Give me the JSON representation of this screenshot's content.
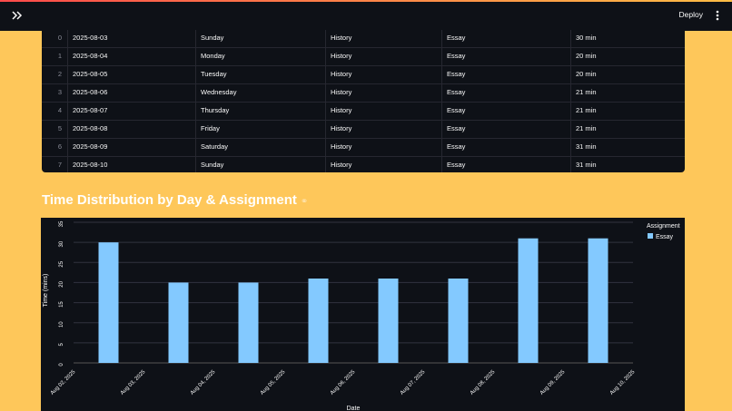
{
  "header": {
    "deploy_label": "Deploy"
  },
  "table": {
    "rows": [
      {
        "idx": "0",
        "date": "2025-08-03",
        "day": "Sunday",
        "subject": "History",
        "assignment": "Essay",
        "time": "30 min"
      },
      {
        "idx": "1",
        "date": "2025-08-04",
        "day": "Monday",
        "subject": "History",
        "assignment": "Essay",
        "time": "20 min"
      },
      {
        "idx": "2",
        "date": "2025-08-05",
        "day": "Tuesday",
        "subject": "History",
        "assignment": "Essay",
        "time": "20 min"
      },
      {
        "idx": "3",
        "date": "2025-08-06",
        "day": "Wednesday",
        "subject": "History",
        "assignment": "Essay",
        "time": "21 min"
      },
      {
        "idx": "4",
        "date": "2025-08-07",
        "day": "Thursday",
        "subject": "History",
        "assignment": "Essay",
        "time": "21 min"
      },
      {
        "idx": "5",
        "date": "2025-08-08",
        "day": "Friday",
        "subject": "History",
        "assignment": "Essay",
        "time": "21 min"
      },
      {
        "idx": "6",
        "date": "2025-08-09",
        "day": "Saturday",
        "subject": "History",
        "assignment": "Essay",
        "time": "31 min"
      },
      {
        "idx": "7",
        "date": "2025-08-10",
        "day": "Sunday",
        "subject": "History",
        "assignment": "Essay",
        "time": "31 min"
      }
    ]
  },
  "section": {
    "title": "Time Distribution by Day & Assignment",
    "link_icon": "link-icon"
  },
  "chart_data": {
    "type": "bar",
    "xlabel": "Date",
    "ylabel": "Time (mins)",
    "ylim": [
      0,
      35
    ],
    "yticks": [
      0,
      5,
      10,
      15,
      20,
      25,
      30,
      35
    ],
    "xticks": [
      "Aug 02, 2025",
      "Aug 03, 2025",
      "Aug 04, 2025",
      "Aug 05, 2025",
      "Aug 06, 2025",
      "Aug 07, 2025",
      "Aug 08, 2025",
      "Aug 09, 2025",
      "Aug 10, 2025"
    ],
    "x": [
      "2025-08-03",
      "2025-08-04",
      "2025-08-05",
      "2025-08-06",
      "2025-08-07",
      "2025-08-08",
      "2025-08-09",
      "2025-08-10"
    ],
    "series": [
      {
        "name": "Essay",
        "values": [
          30,
          20,
          20,
          21,
          21,
          21,
          31,
          31
        ]
      }
    ],
    "legend_title": "Assignment",
    "legend_position": "top-right",
    "grid": true,
    "colors": {
      "bar": "#83c9ff",
      "grid": "#31333f",
      "background": "#0e1117"
    }
  },
  "colors": {
    "page_background": "#fec75a",
    "header_background": "#0e1117",
    "text": "#fafafa"
  }
}
